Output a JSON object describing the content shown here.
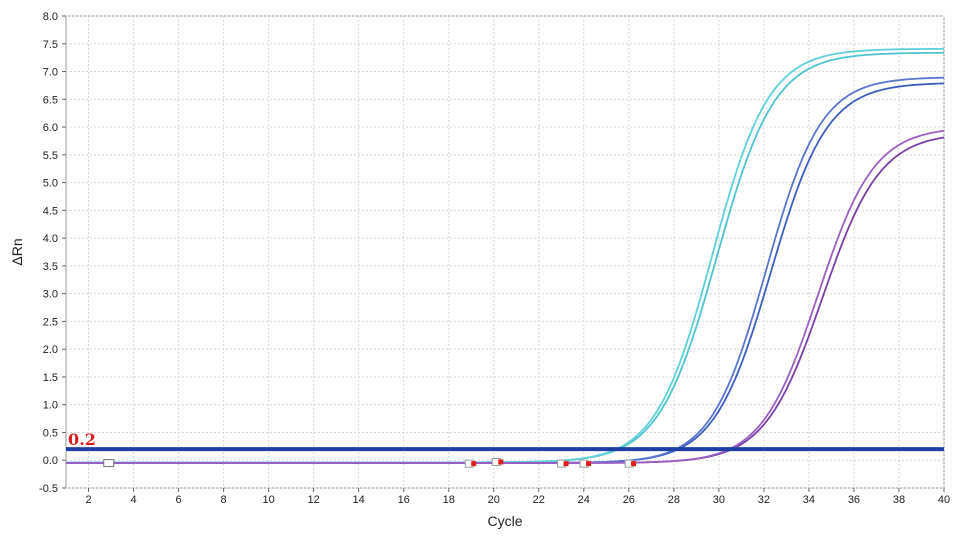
{
  "chart_data": {
    "type": "line",
    "title": "",
    "xlabel": "Cycle",
    "ylabel": "ΔRn",
    "xlim": [
      1,
      40
    ],
    "ylim": [
      -0.5,
      8.0
    ],
    "x_ticks": [
      2,
      4,
      6,
      8,
      10,
      12,
      14,
      16,
      18,
      20,
      22,
      24,
      26,
      28,
      30,
      32,
      34,
      36,
      38,
      40
    ],
    "x_tick_labels": [
      "2",
      "4",
      "6",
      "8",
      "10",
      "12",
      "14",
      "16",
      "18",
      "20",
      "22",
      "24",
      "26",
      "28",
      "30",
      "32",
      "34",
      "36",
      "38",
      "40"
    ],
    "y_ticks": [
      -0.5,
      0.0,
      0.5,
      1.0,
      1.5,
      2.0,
      2.5,
      3.0,
      3.5,
      4.0,
      4.5,
      5.0,
      5.5,
      6.0,
      6.5,
      7.0,
      7.5,
      8.0
    ],
    "y_tick_labels": [
      "-0.5",
      "0.0",
      "0.5",
      "1.0",
      "1.5",
      "2.0",
      "2.5",
      "3.0",
      "3.5",
      "4.0",
      "4.5",
      "5.0",
      "5.5",
      "6.0",
      "6.5",
      "7.0",
      "7.5",
      "8.0"
    ],
    "grid": true,
    "legend": "none",
    "threshold": {
      "value": 0.2,
      "label": "0.2",
      "color": "#1f3fa6"
    },
    "series": [
      {
        "color": "#4fc3cf",
        "plateau": 7.38,
        "midpoint": 29.9,
        "slope": 0.78,
        "baseline": -0.04
      },
      {
        "color": "#5fd0d8",
        "plateau": 7.45,
        "midpoint": 29.7,
        "slope": 0.8,
        "baseline": -0.04
      },
      {
        "color": "#3d5fc0",
        "plateau": 6.85,
        "midpoint": 32.3,
        "slope": 0.8,
        "baseline": -0.05
      },
      {
        "color": "#5a76cf",
        "plateau": 6.95,
        "midpoint": 32.1,
        "slope": 0.82,
        "baseline": -0.05
      },
      {
        "color": "#7a3fa8",
        "plateau": 5.95,
        "midpoint": 34.6,
        "slope": 0.78,
        "baseline": -0.05
      },
      {
        "color": "#9a60c2",
        "plateau": 6.05,
        "midpoint": 34.4,
        "slope": 0.8,
        "baseline": -0.05
      }
    ],
    "markers": [
      {
        "x": 2.9,
        "y": -0.06,
        "type": "outline"
      },
      {
        "x": 19.0,
        "y": -0.07,
        "type": "red"
      },
      {
        "x": 20.2,
        "y": -0.04,
        "type": "red"
      },
      {
        "x": 23.1,
        "y": -0.07,
        "type": "red"
      },
      {
        "x": 24.1,
        "y": -0.07,
        "type": "red"
      },
      {
        "x": 26.1,
        "y": -0.07,
        "type": "red"
      }
    ]
  }
}
